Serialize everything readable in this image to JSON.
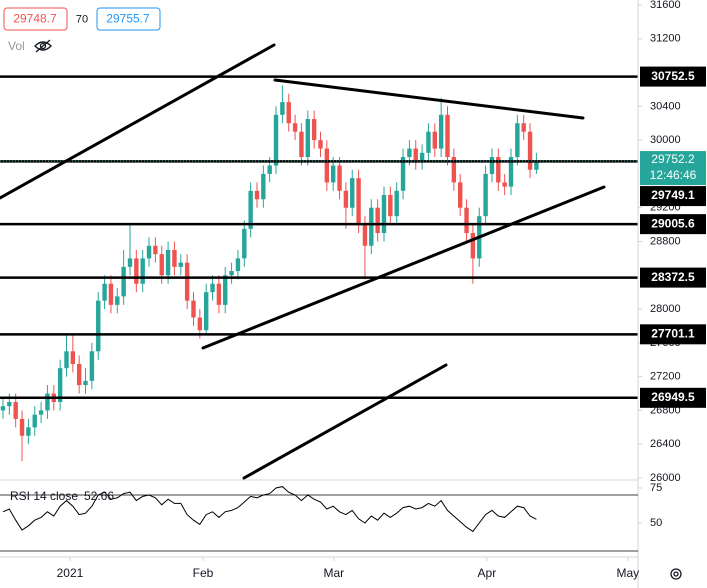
{
  "legend": {
    "values": [
      "29748.7",
      "70",
      "29755.7"
    ],
    "vol": "Vol"
  },
  "chart_data": [
    {
      "type": "candlestick",
      "up_color": "#26a69a",
      "down_color": "#ef5350",
      "ylim": [
        26000,
        31600
      ],
      "yticks": [
        31600,
        31200,
        30400,
        30000,
        29200,
        28800,
        28000,
        27600,
        27200,
        26800,
        26400,
        26000
      ],
      "xlim": [
        -0.47,
        100
      ],
      "xticks": [
        {
          "value": 10.55,
          "label": "2021"
        },
        {
          "value": 31.5,
          "label": "Feb"
        },
        {
          "value": 52.1,
          "label": "Mar"
        },
        {
          "value": 76.2,
          "label": "Apr"
        },
        {
          "value": 98.4,
          "label": "May"
        }
      ],
      "levels": [
        30752.5,
        29749.1,
        29005.6,
        28372.5,
        27701.1,
        26949.5
      ],
      "countdown": "12:46:46",
      "ohlc": [
        [
          26800,
          26950,
          26700,
          26850
        ],
        [
          26850,
          27000,
          26750,
          26900
        ],
        [
          26900,
          27000,
          26600,
          26700
        ],
        [
          26700,
          26800,
          26200,
          26500
        ],
        [
          26500,
          26700,
          26400,
          26600
        ],
        [
          26600,
          26850,
          26500,
          26750
        ],
        [
          26750,
          26900,
          26650,
          26800
        ],
        [
          26800,
          27100,
          26700,
          27000
        ],
        [
          27000,
          27100,
          26800,
          26900
        ],
        [
          26900,
          27400,
          26800,
          27300
        ],
        [
          27300,
          27700,
          27200,
          27500
        ],
        [
          27500,
          27700,
          27250,
          27350
        ],
        [
          27350,
          27450,
          27000,
          27100
        ],
        [
          27100,
          27300,
          27000,
          27150
        ],
        [
          27150,
          27600,
          27050,
          27500
        ],
        [
          27500,
          28200,
          27400,
          28100
        ],
        [
          28100,
          28400,
          28000,
          28300
        ],
        [
          28300,
          28400,
          27950,
          28050
        ],
        [
          28050,
          28250,
          27950,
          28150
        ],
        [
          28150,
          28700,
          28050,
          28500
        ],
        [
          28500,
          29000,
          28400,
          28600
        ],
        [
          28600,
          28700,
          28200,
          28300
        ],
        [
          28300,
          28700,
          28200,
          28600
        ],
        [
          28600,
          28850,
          28500,
          28750
        ],
        [
          28750,
          28850,
          28550,
          28650
        ],
        [
          28650,
          28750,
          28300,
          28400
        ],
        [
          28400,
          28800,
          28300,
          28700
        ],
        [
          28700,
          28800,
          28400,
          28500
        ],
        [
          28500,
          28650,
          28400,
          28550
        ],
        [
          28550,
          28650,
          28000,
          28100
        ],
        [
          28100,
          28200,
          27800,
          27900
        ],
        [
          27900,
          28000,
          27650,
          27750
        ],
        [
          27750,
          28300,
          27700,
          28200
        ],
        [
          28200,
          28400,
          28100,
          28300
        ],
        [
          28300,
          28400,
          27950,
          28050
        ],
        [
          28050,
          28500,
          27950,
          28400
        ],
        [
          28400,
          28550,
          28300,
          28450
        ],
        [
          28450,
          28700,
          28350,
          28600
        ],
        [
          28600,
          29050,
          28500,
          28950
        ],
        [
          28950,
          29500,
          28850,
          29400
        ],
        [
          29400,
          29500,
          29200,
          29300
        ],
        [
          29300,
          29700,
          29200,
          29600
        ],
        [
          29600,
          29800,
          29500,
          29700
        ],
        [
          29700,
          30400,
          29600,
          30300
        ],
        [
          30300,
          30650,
          30200,
          30450
        ],
        [
          30450,
          30550,
          30100,
          30200
        ],
        [
          30200,
          30300,
          30000,
          30100
        ],
        [
          30100,
          30200,
          29700,
          29800
        ],
        [
          29800,
          30350,
          29700,
          30250
        ],
        [
          30250,
          30350,
          29900,
          30000
        ],
        [
          30000,
          30100,
          29800,
          29900
        ],
        [
          29900,
          30000,
          29400,
          29500
        ],
        [
          29500,
          29800,
          29400,
          29700
        ],
        [
          29700,
          29800,
          29300,
          29400
        ],
        [
          29400,
          29500,
          28950,
          29200
        ],
        [
          29200,
          29650,
          29100,
          29550
        ],
        [
          29550,
          29650,
          28900,
          29000
        ],
        [
          29000,
          29100,
          28350,
          28750
        ],
        [
          28750,
          29300,
          28650,
          29200
        ],
        [
          29200,
          29300,
          28800,
          28900
        ],
        [
          28900,
          29450,
          28800,
          29350
        ],
        [
          29350,
          29450,
          29000,
          29100
        ],
        [
          29100,
          29500,
          29000,
          29400
        ],
        [
          29400,
          29900,
          29300,
          29800
        ],
        [
          29800,
          30000,
          29700,
          29900
        ],
        [
          29900,
          30000,
          29650,
          29750
        ],
        [
          29750,
          29950,
          29650,
          29850
        ],
        [
          29850,
          30200,
          29750,
          30100
        ],
        [
          30100,
          30200,
          29800,
          29900
        ],
        [
          29900,
          30500,
          29800,
          30300
        ],
        [
          30300,
          30400,
          29700,
          29800
        ],
        [
          29800,
          29900,
          29400,
          29500
        ],
        [
          29500,
          29600,
          29100,
          29200
        ],
        [
          29200,
          29300,
          28800,
          28900
        ],
        [
          28900,
          29000,
          28300,
          28600
        ],
        [
          28600,
          29200,
          28500,
          29100
        ],
        [
          29100,
          29700,
          29000,
          29600
        ],
        [
          29600,
          29900,
          29500,
          29800
        ],
        [
          29800,
          29900,
          29400,
          29500
        ],
        [
          29500,
          29600,
          29350,
          29450
        ],
        [
          29450,
          29900,
          29350,
          29800
        ],
        [
          29800,
          30300,
          29700,
          30200
        ],
        [
          30200,
          30300,
          30000,
          30100
        ],
        [
          30100,
          30200,
          29550,
          29650
        ],
        [
          29650,
          29850,
          29600,
          29752.2
        ]
      ]
    },
    {
      "type": "line",
      "name": "RSI 14 close",
      "color": "#000000",
      "ylim": [
        25,
        80
      ],
      "yticks": [
        75,
        50
      ],
      "bands": [
        70,
        30
      ],
      "values": [
        58,
        60,
        52,
        45,
        48,
        52,
        54,
        58,
        55,
        62,
        66,
        62,
        56,
        57,
        62,
        70,
        72,
        67,
        68,
        71,
        72,
        66,
        69,
        70,
        68,
        63,
        67,
        64,
        64,
        56,
        52,
        49,
        56,
        58,
        54,
        58,
        59,
        61,
        65,
        69,
        68,
        70,
        71,
        75,
        76,
        72,
        70,
        66,
        70,
        67,
        65,
        60,
        62,
        58,
        56,
        59,
        53,
        50,
        55,
        52,
        57,
        54,
        57,
        61,
        62,
        60,
        61,
        64,
        62,
        66,
        59,
        55,
        51,
        47,
        44,
        50,
        56,
        59,
        55,
        54,
        58,
        62,
        61,
        55,
        52.66
      ]
    }
  ]
}
